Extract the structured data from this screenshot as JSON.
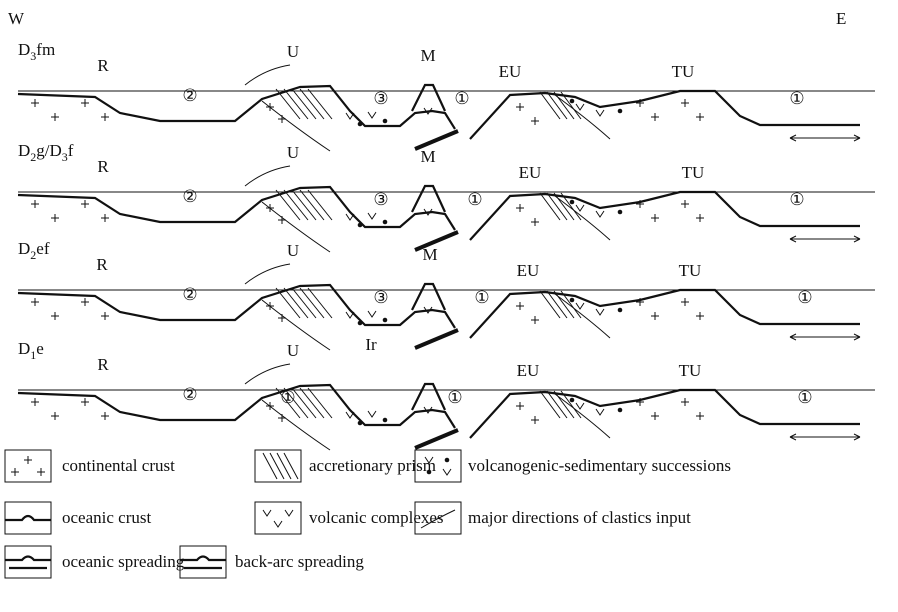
{
  "corners": {
    "west": "W",
    "east": "E"
  },
  "panels": [
    {
      "stage": [
        {
          "text": "D"
        },
        {
          "text": "3",
          "sub": true
        },
        {
          "text": "fm"
        }
      ],
      "labels": [
        "R",
        "U",
        "M",
        "EU",
        "TU",
        "②",
        "③",
        "①",
        "①"
      ]
    },
    {
      "stage": [
        {
          "text": "D"
        },
        {
          "text": "2",
          "sub": true
        },
        {
          "text": "g/D"
        },
        {
          "text": "3",
          "sub": true
        },
        {
          "text": "f"
        }
      ],
      "labels": [
        "R",
        "U",
        "M",
        "EU",
        "TU",
        "②",
        "③",
        "①",
        "①"
      ]
    },
    {
      "stage": [
        {
          "text": "D"
        },
        {
          "text": "2",
          "sub": true
        },
        {
          "text": "ef"
        }
      ],
      "labels": [
        "R",
        "U",
        "M",
        "EU",
        "TU",
        "②",
        "③",
        "①",
        "①"
      ]
    },
    {
      "stage": [
        {
          "text": "D"
        },
        {
          "text": "1",
          "sub": true
        },
        {
          "text": "e"
        }
      ],
      "labels": [
        "R",
        "U",
        "Ir",
        "EU",
        "TU",
        "②",
        "①",
        "①",
        "①"
      ]
    }
  ],
  "legend": [
    "continental crust",
    "accretionary prism",
    "volcanogenic-sedimentary successions",
    "oceanic crust",
    "volcanic complexes",
    "major directions of clastics input",
    "oceanic spreading",
    "back-arc spreading"
  ]
}
